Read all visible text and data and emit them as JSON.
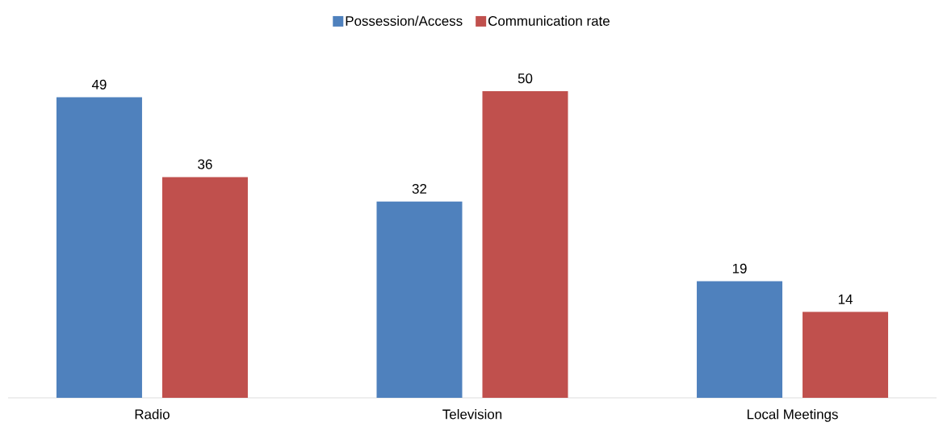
{
  "chart_data": {
    "type": "bar",
    "categories": [
      "Radio",
      "Television",
      "Local Meetings"
    ],
    "series": [
      {
        "name": "Possession/Access",
        "color": "#4f81bd",
        "values": [
          49,
          32,
          19
        ]
      },
      {
        "name": "Communication rate",
        "color": "#c0504d",
        "values": [
          36,
          50,
          14
        ]
      }
    ],
    "data_labels": true,
    "legend": "top"
  }
}
